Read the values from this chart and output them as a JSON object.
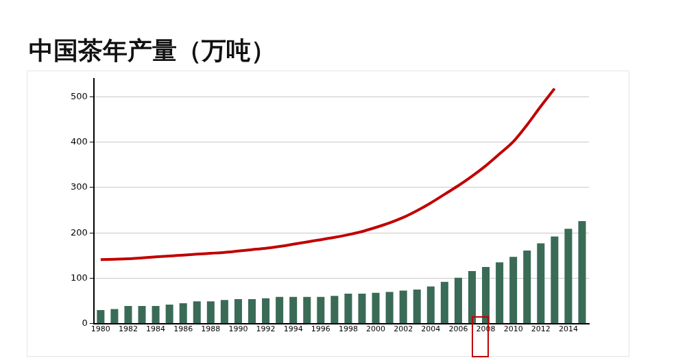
{
  "chart_data": {
    "type": "bar",
    "title": "中国茶年产量（万吨）",
    "categories": [
      "1980",
      null,
      "1982",
      null,
      "1984",
      null,
      "1986",
      null,
      "1988",
      null,
      "1990",
      null,
      "1992",
      null,
      "1994",
      null,
      "1996",
      null,
      "1998",
      null,
      "2000",
      null,
      "2002",
      null,
      "2004",
      null,
      "2006",
      null,
      "2008",
      null,
      "2010",
      null,
      "2012",
      null,
      "2014",
      null
    ],
    "series": [
      {
        "color": "#3a6b56",
        "values": [
          30,
          32,
          39,
          39,
          39,
          42,
          45,
          49,
          49,
          52,
          54,
          54,
          56,
          59,
          59,
          59,
          59,
          61,
          66,
          66,
          68,
          70,
          73,
          75,
          82,
          92,
          101,
          116,
          125,
          135,
          147,
          161,
          177,
          192,
          209,
          226
        ]
      },
      {
        "type": "line",
        "color": "#c00000",
        "values": [
          141,
          142,
          143,
          145,
          147,
          149,
          151,
          153,
          155,
          157,
          160,
          163,
          166,
          170,
          175,
          180,
          185,
          190,
          196,
          203,
          212,
          222,
          234,
          249,
          266,
          285,
          304,
          325,
          348,
          374,
          401,
          438,
          479,
          518,
          null,
          null
        ]
      }
    ],
    "ylim": [
      0,
      540
    ],
    "yticks": [
      0,
      100,
      200,
      300,
      400,
      500
    ],
    "grid": "y",
    "legend": false,
    "marker": "none"
  }
}
